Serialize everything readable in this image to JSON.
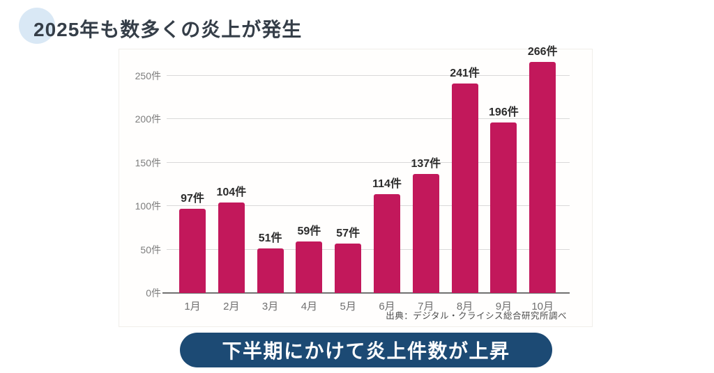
{
  "header": {
    "title": "2025年も数多くの炎上が発生",
    "title_color": "#353e48",
    "accent_circle_color": "#d9e8f5"
  },
  "chart_data": {
    "type": "bar",
    "categories": [
      "1月",
      "2月",
      "3月",
      "4月",
      "5月",
      "6月",
      "7月",
      "8月",
      "9月",
      "10月"
    ],
    "values": [
      97,
      104,
      51,
      59,
      57,
      114,
      137,
      241,
      196,
      266
    ],
    "value_labels": [
      "97件",
      "104件",
      "51件",
      "59件",
      "57件",
      "114件",
      "137件",
      "241件",
      "196件",
      "266件"
    ],
    "y_axis": {
      "tick_values": [
        0,
        50,
        100,
        150,
        200,
        250
      ],
      "tick_labels": [
        "0件",
        "50件",
        "100件",
        "150件",
        "200件",
        "250件"
      ],
      "unit": "件"
    },
    "ylim": [
      0,
      273
    ],
    "grid": true,
    "legend": false,
    "bar_color": "#c2185b",
    "source": "出典：デジタル・クライシス総合研究所調べ"
  },
  "banner": {
    "text": "下半期にかけて炎上件数が上昇",
    "background": "#1c4a74",
    "text_color": "#ffffff"
  }
}
